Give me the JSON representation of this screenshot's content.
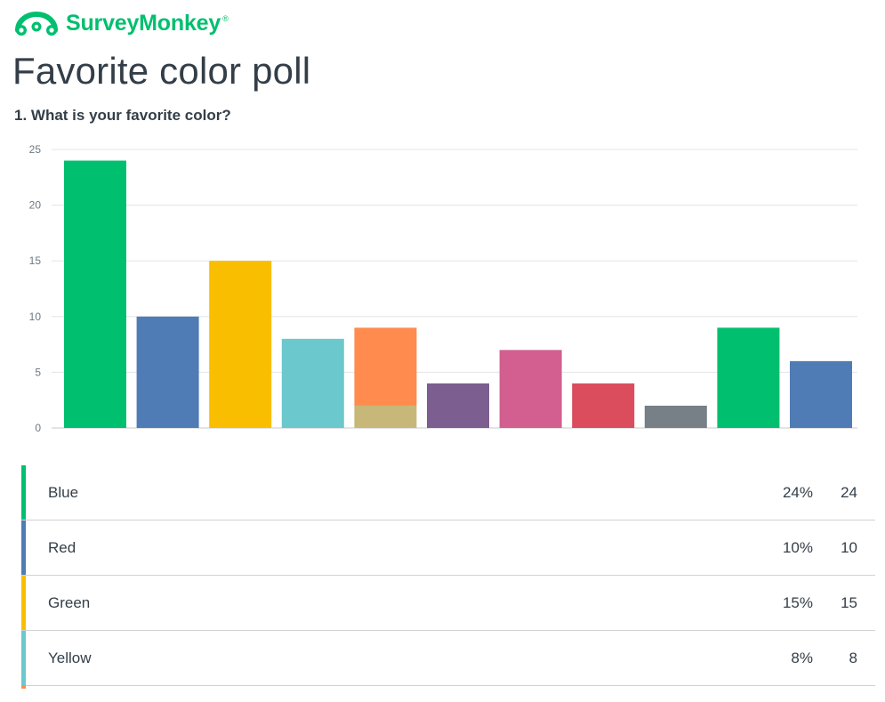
{
  "brand": {
    "name": "SurveyMonkey",
    "mark": "®",
    "color": "#00bf6f"
  },
  "page_title": "Favorite color poll",
  "question": "1. What is your favorite color?",
  "chart_data": {
    "type": "bar",
    "ylim": [
      0,
      25
    ],
    "yticks": [
      0,
      5,
      10,
      15,
      20,
      25
    ],
    "grid": true,
    "bars": [
      {
        "value": 24,
        "color": "#00bf6f"
      },
      {
        "value": 10,
        "color": "#507cb6"
      },
      {
        "value": 15,
        "color": "#f9be00"
      },
      {
        "value": 8,
        "color": "#6bc8cd"
      },
      {
        "value": 9,
        "color": "#ff8b4f",
        "segments": [
          {
            "value": 2,
            "color": "#c7b879"
          },
          {
            "value": 7,
            "color": "#ff8b4f"
          }
        ]
      },
      {
        "value": 4,
        "color": "#7d5e90"
      },
      {
        "value": 7,
        "color": "#d25f90"
      },
      {
        "value": 4,
        "color": "#db4d5c"
      },
      {
        "value": 2,
        "color": "#768086"
      },
      {
        "value": 9,
        "color": "#00bf6f"
      },
      {
        "value": 6,
        "color": "#507cb6"
      }
    ]
  },
  "results": [
    {
      "label": "Blue",
      "percent": "24%",
      "count": "24",
      "color": "#00bf6f"
    },
    {
      "label": "Red",
      "percent": "10%",
      "count": "10",
      "color": "#507cb6"
    },
    {
      "label": "Green",
      "percent": "15%",
      "count": "15",
      "color": "#f9be00"
    },
    {
      "label": "Yellow",
      "percent": "8%",
      "count": "8",
      "color": "#6bc8cd"
    }
  ],
  "results_peek_color": "#ff8b4f"
}
